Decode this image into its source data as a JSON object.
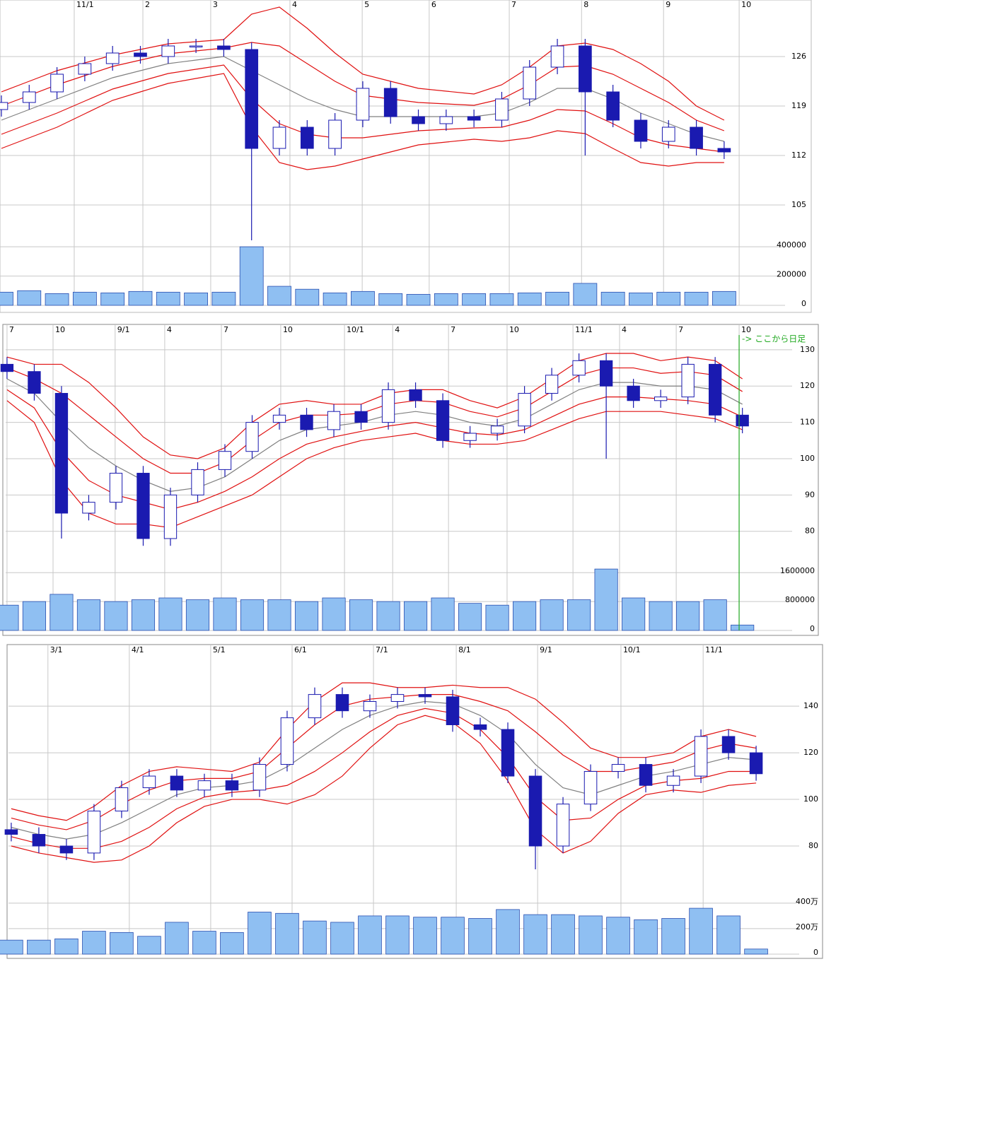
{
  "chart_data": [
    {
      "type": "candlestick",
      "up_color": "#ffffff",
      "down_color": "#1a1ab0",
      "candle_stroke": "#1a1ab0",
      "ma_color": "#808080",
      "band_color": "#e01010",
      "volume_color": "#8fbff2",
      "grid": true,
      "xlim": [
        -0.05,
        26.97
      ],
      "ylim": [
        99,
        134
      ],
      "vlim": [
        0,
        420000
      ],
      "xticks": [
        {
          "value": 2.62,
          "label": "11/1"
        },
        {
          "value": 5.09,
          "label": "2"
        },
        {
          "value": 7.53,
          "label": "3"
        },
        {
          "value": 10.38,
          "label": "4"
        },
        {
          "value": 12.98,
          "label": "5"
        },
        {
          "value": 15.39,
          "label": "6"
        },
        {
          "value": 18.27,
          "label": "7"
        },
        {
          "value": 20.87,
          "label": "8"
        },
        {
          "value": 23.82,
          "label": "9"
        },
        {
          "value": 26.54,
          "label": "10"
        }
      ],
      "yticks": [
        126,
        119,
        112,
        105
      ],
      "vticks": [
        400000,
        200000,
        0
      ],
      "open": [
        118.5,
        119.5,
        121,
        123.5,
        125,
        126.5,
        126,
        127.5,
        127.5,
        127,
        113,
        116,
        113,
        117,
        121.5,
        117.5,
        116.5,
        117.5,
        117,
        120,
        124.5,
        127.5,
        121,
        117,
        114,
        116,
        113
      ],
      "high": [
        120.5,
        122,
        124.5,
        126,
        127.5,
        127.5,
        128.5,
        128.5,
        128.5,
        128,
        117,
        117,
        118,
        122.5,
        122.5,
        118.5,
        118.5,
        118.5,
        121,
        125.5,
        128.5,
        128.5,
        122,
        118,
        117,
        117,
        114
      ],
      "low": [
        117.5,
        118.5,
        120,
        122.5,
        124,
        125,
        125,
        126.5,
        126,
        100,
        112,
        112,
        112,
        116,
        116.5,
        115.5,
        115.5,
        116,
        116,
        119,
        123.5,
        112,
        116,
        113,
        113,
        112,
        111.5
      ],
      "close": [
        119.5,
        121,
        123.5,
        125,
        126.5,
        126,
        127.5,
        127.5,
        127,
        113,
        116,
        113,
        117,
        121.5,
        117.5,
        116.5,
        117.5,
        117,
        120,
        124.5,
        127.5,
        121,
        117,
        114,
        116,
        113,
        112.5
      ],
      "ma": [
        117,
        118.5,
        120,
        121.5,
        123,
        124,
        125,
        125.5,
        126,
        124,
        122,
        120,
        118.5,
        117.5,
        117.5,
        117.5,
        117.5,
        117.5,
        118,
        119.5,
        121.5,
        121.5,
        120,
        118,
        116.5,
        115,
        114
      ],
      "upper1": [
        119,
        120.5,
        122,
        123.3,
        124.6,
        125.5,
        126.4,
        126.8,
        127.2,
        128,
        127.5,
        125,
        122.5,
        120.5,
        120,
        119.5,
        119.3,
        119.1,
        120,
        122,
        124.5,
        124.7,
        123.5,
        121.5,
        119.5,
        117,
        115.5
      ],
      "upper2": [
        121,
        122.5,
        124,
        125.1,
        126.2,
        127,
        127.8,
        128.1,
        128.4,
        132,
        133,
        130,
        126.5,
        123.5,
        122.5,
        121.5,
        121.1,
        120.7,
        122,
        124.5,
        127.5,
        127.9,
        127,
        125,
        122.5,
        119,
        117
      ],
      "lower1": [
        115,
        116.5,
        118,
        119.7,
        121.4,
        122.5,
        123.6,
        124.2,
        124.8,
        120,
        116.5,
        115,
        114.5,
        114.5,
        115,
        115.5,
        115.7,
        115.9,
        116,
        117,
        118.5,
        118.3,
        116.5,
        114.5,
        113.5,
        113,
        112.5
      ],
      "lower2": [
        113,
        114.5,
        116,
        117.9,
        119.8,
        121,
        122.2,
        122.9,
        123.6,
        116,
        111,
        110,
        110.5,
        111.5,
        112.5,
        113.5,
        113.9,
        114.3,
        114,
        114.5,
        115.5,
        115.1,
        113,
        111,
        110.5,
        111,
        111
      ],
      "volume": [
        90000,
        100000,
        80000,
        90000,
        85000,
        95000,
        90000,
        85000,
        90000,
        400000,
        130000,
        110000,
        85000,
        95000,
        80000,
        75000,
        80000,
        80000,
        80000,
        85000,
        90000,
        150000,
        90000,
        85000,
        90000,
        90000,
        95000
      ]
    },
    {
      "type": "candlestick",
      "up_color": "#ffffff",
      "down_color": "#1a1ab0",
      "candle_stroke": "#1a1ab0",
      "ma_color": "#808080",
      "band_color": "#e01010",
      "volume_color": "#8fbff2",
      "grid": true,
      "annotation": "-> ここから日足",
      "annotation_color": "#22aa22",
      "xlim": [
        -0.05,
        27.58
      ],
      "ylim": [
        70.6,
        136.4
      ],
      "vlim": [
        0,
        1800000
      ],
      "xticks": [
        {
          "value": 0,
          "label": "7"
        },
        {
          "value": 1.69,
          "label": "10"
        },
        {
          "value": 3.97,
          "label": "9/1"
        },
        {
          "value": 5.79,
          "label": "4"
        },
        {
          "value": 7.87,
          "label": "7"
        },
        {
          "value": 10.05,
          "label": "10"
        },
        {
          "value": 12.39,
          "label": "10/1"
        },
        {
          "value": 14.16,
          "label": "4"
        },
        {
          "value": 16.21,
          "label": "7"
        },
        {
          "value": 18.36,
          "label": "10"
        },
        {
          "value": 20.78,
          "label": "11/1"
        },
        {
          "value": 22.49,
          "label": "4"
        },
        {
          "value": 24.57,
          "label": "7"
        },
        {
          "value": 26.88,
          "label": "10"
        }
      ],
      "yticks": [
        130,
        120,
        110,
        100,
        90,
        80
      ],
      "vticks": [
        1600000,
        800000,
        0
      ],
      "open": [
        126,
        124,
        118,
        85,
        88,
        96,
        78,
        90,
        97,
        102,
        110,
        112,
        108,
        113,
        110,
        119,
        116,
        105,
        107,
        109,
        118,
        123,
        127,
        120,
        116,
        117,
        126,
        112
      ],
      "high": [
        128,
        126,
        120,
        90,
        98,
        98,
        92,
        99,
        104,
        112,
        114,
        114,
        115,
        115,
        121,
        121,
        118,
        109,
        111,
        120,
        125,
        129,
        129,
        122,
        119,
        128,
        128,
        114
      ],
      "low": [
        122,
        116,
        78,
        83,
        86,
        76,
        76,
        88,
        95,
        100,
        108,
        106,
        106,
        108,
        108,
        114,
        103,
        103,
        105,
        107,
        116,
        121,
        100,
        114,
        114,
        115,
        110,
        107
      ],
      "close": [
        124,
        118,
        85,
        88,
        96,
        78,
        90,
        97,
        102,
        110,
        112,
        108,
        113,
        110,
        119,
        116,
        105,
        107,
        109,
        118,
        123,
        127,
        120,
        116,
        117,
        126,
        112,
        109
      ],
      "ma": [
        122,
        118,
        110,
        103,
        98,
        94,
        91,
        92,
        95,
        100,
        105,
        108,
        109,
        110,
        112,
        113,
        112,
        110,
        109,
        111,
        115,
        119,
        121,
        121,
        120,
        120,
        119,
        115
      ],
      "upper1": [
        125,
        122,
        118,
        112,
        106,
        100,
        96,
        96,
        99,
        105,
        110,
        112,
        112,
        112.5,
        115,
        116,
        115.5,
        113,
        111.5,
        114,
        118.5,
        123,
        125,
        125,
        123.5,
        124,
        123,
        118.5
      ],
      "upper2": [
        128,
        126,
        126,
        121,
        114,
        106,
        101,
        100,
        103,
        110,
        115,
        116,
        115,
        115,
        118,
        119,
        119,
        116,
        114,
        117,
        122,
        127,
        129,
        129,
        127,
        128,
        127,
        122
      ],
      "lower1": [
        119,
        114,
        102,
        94,
        90,
        88,
        86,
        88,
        91,
        95,
        100,
        104,
        106,
        107.5,
        109,
        110,
        108.5,
        107,
        106.5,
        108,
        111.5,
        115,
        117,
        117,
        116.5,
        116,
        115,
        111.5
      ],
      "lower2": [
        116,
        110,
        94,
        85,
        82,
        82,
        81,
        84,
        87,
        90,
        95,
        100,
        103,
        105,
        106,
        107,
        105,
        104,
        104,
        105,
        108,
        111,
        113,
        113,
        113,
        112,
        111,
        108
      ],
      "volume": [
        700000,
        800000,
        1000000,
        850000,
        800000,
        850000,
        900000,
        850000,
        900000,
        850000,
        850000,
        800000,
        900000,
        850000,
        800000,
        800000,
        900000,
        750000,
        700000,
        800000,
        850000,
        850000,
        1700000,
        900000,
        800000,
        800000,
        850000,
        150000
      ]
    },
    {
      "type": "candlestick",
      "up_color": "#ffffff",
      "down_color": "#1a1ab0",
      "candle_stroke": "#1a1ab0",
      "ma_color": "#808080",
      "band_color": "#e01010",
      "volume_color": "#8fbff2",
      "grid": true,
      "xlim": [
        -0.1,
        27.28
      ],
      "ylim": [
        60.3,
        165.8
      ],
      "vlim": [
        0,
        4880000
      ],
      "xticks": [
        {
          "value": 1.33,
          "label": "3/1"
        },
        {
          "value": 4.28,
          "label": "4/1"
        },
        {
          "value": 7.23,
          "label": "5/1"
        },
        {
          "value": 10.18,
          "label": "6/1"
        },
        {
          "value": 13.13,
          "label": "7/1"
        },
        {
          "value": 16.13,
          "label": "8/1"
        },
        {
          "value": 19.08,
          "label": "9/1"
        },
        {
          "value": 22.1,
          "label": "10/1"
        },
        {
          "value": 25.08,
          "label": "11/1"
        }
      ],
      "yticks": [
        140,
        120,
        100,
        80
      ],
      "vticks": [
        {
          "value": 4000000,
          "label": "400万"
        },
        {
          "value": 2000000,
          "label": "200万"
        },
        0
      ],
      "open": [
        87,
        85,
        80,
        77,
        95,
        105,
        110,
        104,
        108,
        104,
        115,
        135,
        145,
        138,
        142,
        145,
        144,
        132,
        130,
        110,
        80,
        98,
        112,
        115,
        106,
        110,
        127,
        120
      ],
      "high": [
        90,
        88,
        83,
        98,
        108,
        113,
        113,
        111,
        111,
        118,
        138,
        148,
        148,
        145,
        148,
        148,
        147,
        135,
        133,
        113,
        101,
        115,
        118,
        118,
        113,
        130,
        130,
        123
      ],
      "low": [
        82,
        77,
        74,
        74,
        92,
        102,
        101,
        101,
        101,
        101,
        112,
        132,
        135,
        135,
        139,
        141,
        129,
        127,
        107,
        70,
        77,
        95,
        109,
        103,
        103,
        107,
        117,
        108
      ],
      "close": [
        85,
        80,
        77,
        95,
        105,
        110,
        104,
        108,
        104,
        115,
        135,
        145,
        138,
        142,
        145,
        144,
        132,
        130,
        110,
        80,
        98,
        112,
        115,
        106,
        110,
        127,
        120,
        111
      ],
      "ma": [
        88,
        85,
        83,
        85,
        90,
        96,
        102,
        105,
        106,
        108,
        114,
        122,
        130,
        136,
        140,
        142,
        141,
        136,
        128,
        115,
        105,
        102,
        106,
        110,
        112,
        115,
        118,
        117
      ],
      "upper1": [
        92,
        89,
        87,
        91,
        98,
        104,
        108,
        109,
        109,
        112,
        122,
        132,
        140,
        143,
        144,
        145,
        145,
        142,
        138,
        129,
        119,
        112,
        112,
        114,
        116,
        121,
        124,
        122
      ],
      "upper2": [
        96,
        93,
        91,
        97,
        106,
        112,
        114,
        113,
        112,
        116,
        130,
        142,
        150,
        150,
        148,
        148,
        149,
        148,
        148,
        143,
        133,
        122,
        118,
        118,
        120,
        127,
        130,
        127
      ],
      "lower1": [
        84,
        81,
        79,
        79,
        82,
        88,
        96,
        101,
        103,
        104,
        106,
        112,
        120,
        129,
        136,
        139,
        137,
        130,
        118,
        101,
        91,
        92,
        100,
        106,
        108,
        109,
        112,
        112
      ],
      "lower2": [
        80,
        77,
        75,
        73,
        74,
        80,
        90,
        97,
        100,
        100,
        98,
        102,
        110,
        122,
        132,
        136,
        133,
        124,
        108,
        87,
        77,
        82,
        94,
        102,
        104,
        103,
        106,
        107
      ],
      "volume": [
        1100000,
        1100000,
        1200000,
        1800000,
        1700000,
        1400000,
        2500000,
        1800000,
        1700000,
        3300000,
        3200000,
        2600000,
        2500000,
        3000000,
        3000000,
        2900000,
        2900000,
        2800000,
        3500000,
        3100000,
        3100000,
        3000000,
        2900000,
        2700000,
        2800000,
        3600000,
        3000000,
        400000
      ]
    }
  ]
}
